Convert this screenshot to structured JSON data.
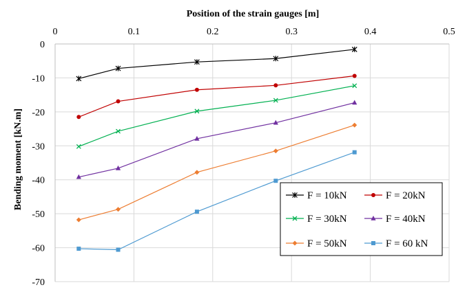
{
  "chart_data": {
    "type": "line",
    "title": "",
    "xlabel": "Position of the strain gauges [m]",
    "ylabel": "Bending moment [kN.m]",
    "x_axis_position": "top",
    "xlim": [
      0,
      0.5
    ],
    "ylim": [
      -70,
      0
    ],
    "x_ticks": [
      0,
      0.1,
      0.2,
      0.3,
      0.4,
      0.5
    ],
    "x_tick_labels": [
      "0",
      "0.1",
      "0.2",
      "0.3",
      "0.4",
      "0.5"
    ],
    "y_ticks": [
      0,
      -10,
      -20,
      -30,
      -40,
      -50,
      -60,
      -70
    ],
    "y_tick_labels": [
      "0",
      "-10",
      "-20",
      "-30",
      "-40",
      "-50",
      "-60",
      "-70"
    ],
    "grid": true,
    "legend_position": "bottom-right",
    "x": [
      0.03,
      0.08,
      0.18,
      0.28,
      0.38
    ],
    "series": [
      {
        "name": "F = 10kN",
        "color": "#000000",
        "marker": "star",
        "values": [
          -10.2,
          -7.2,
          -5.3,
          -4.3,
          -1.6
        ]
      },
      {
        "name": "F = 20kN",
        "color": "#c00000",
        "marker": "circle",
        "values": [
          -21.5,
          -16.9,
          -13.5,
          -12.2,
          -9.4
        ]
      },
      {
        "name": "F = 30kN",
        "color": "#00b050",
        "marker": "x",
        "values": [
          -30.2,
          -25.7,
          -19.8,
          -16.6,
          -12.3
        ]
      },
      {
        "name": "F = 40kN",
        "color": "#7030a0",
        "marker": "triangle",
        "values": [
          -39.2,
          -36.6,
          -27.9,
          -23.2,
          -17.3
        ]
      },
      {
        "name": "F = 50kN",
        "color": "#ed7d31",
        "marker": "diamond",
        "values": [
          -51.8,
          -48.7,
          -37.8,
          -31.5,
          -23.9
        ]
      },
      {
        "name": "F = 60 kN",
        "color": "#4e9ad1",
        "marker": "square",
        "values": [
          -60.3,
          -60.6,
          -49.4,
          -40.3,
          -31.9
        ]
      }
    ]
  }
}
